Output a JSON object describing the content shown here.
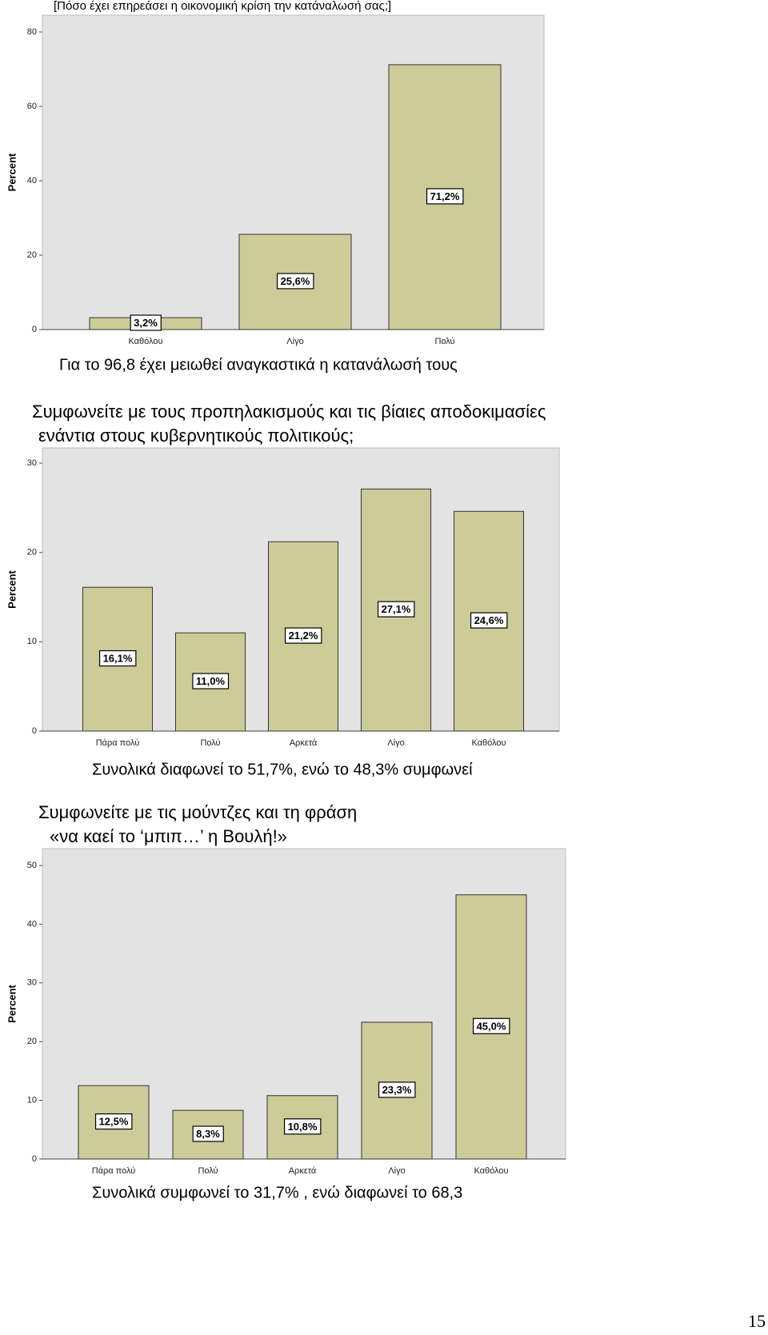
{
  "chart_data": [
    {
      "type": "bar",
      "title": "[Πόσο έχει επηρεάσει η οικονομική κρίση την κατάναλωσή σας;]",
      "y_label": "Percent",
      "categories": [
        "Καθόλου",
        "Λίγο",
        "Πολύ"
      ],
      "values": [
        3.2,
        25.6,
        71.2
      ],
      "value_labels": [
        "3,2%",
        "25,6%",
        "71,2%"
      ],
      "color": "#cdcc99",
      "ylim": [
        0,
        80
      ],
      "yticks": [
        0,
        20,
        40,
        60,
        80
      ]
    },
    {
      "type": "bar",
      "title": [
        "Συμφωνείτε με τους προπηλακισμούς και τις βίαιες αποδοκιμασίες",
        "ενάντια στους    κυβερνητικούς πολιτικούς;"
      ],
      "y_label": "Percent",
      "categories": [
        "Πάρα πολύ",
        "Πολύ",
        "Αρκετά",
        "Λίγο",
        "Καθόλου"
      ],
      "values": [
        16.1,
        11.0,
        21.2,
        27.1,
        24.6
      ],
      "value_labels": [
        "16,1%",
        "11,0%",
        "21,2%",
        "27,1%",
        "24,6%"
      ],
      "color": "#cdcc99",
      "ylim": [
        0,
        30
      ],
      "yticks": [
        0,
        10,
        20,
        30
      ]
    },
    {
      "type": "bar",
      "title": [
        "Συμφωνείτε με τις μούντζες και τη φράση",
        "«να καεί  το ‘μπιπ…’  η Βουλή!»"
      ],
      "y_label": "Percent",
      "categories": [
        "Πάρα πολύ",
        "Πολύ",
        "Αρκετά",
        "Λίγο",
        "Καθόλου"
      ],
      "values": [
        12.5,
        8.3,
        10.8,
        23.3,
        45.0
      ],
      "value_labels": [
        "12,5%",
        "8,3%",
        "10,8%",
        "23,3%",
        "45,0%"
      ],
      "color": "#cdcc99",
      "ylim": [
        0,
        50
      ],
      "yticks": [
        0,
        10,
        20,
        30,
        40,
        50
      ]
    }
  ],
  "notes": [
    "Για το 96,8 έχει μειωθεί αναγκαστικά η κατανάλωσή τους",
    "Συνολικά διαφωνεί  το 51,7%, ενώ το  48,3% συμφωνεί",
    "Συνολικά συμφωνεί  το 31,7% , ενώ  διαφωνεί το 68,3"
  ],
  "page_number": "15"
}
